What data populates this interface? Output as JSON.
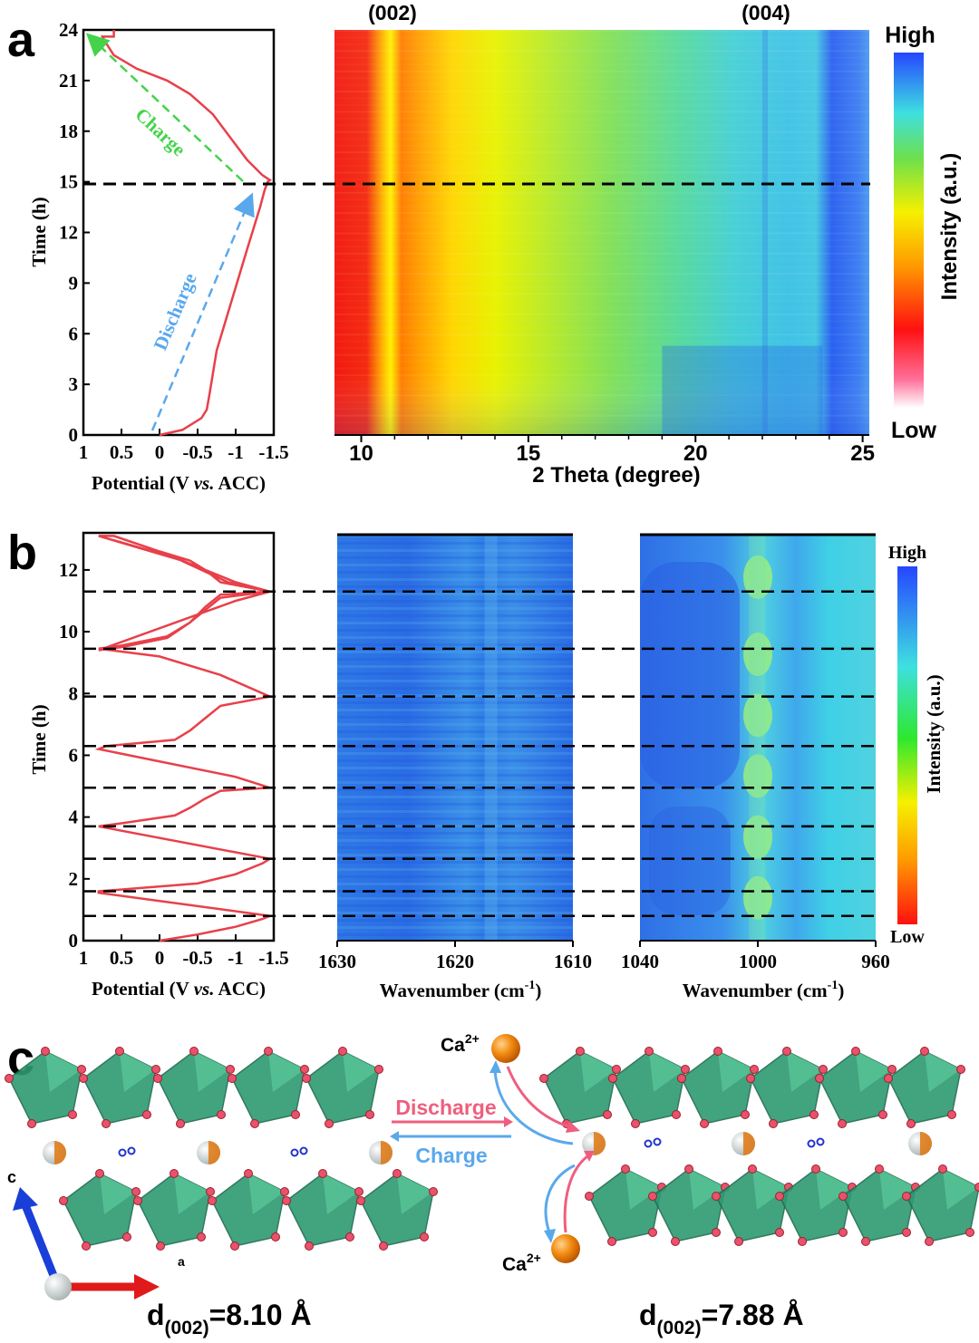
{
  "panel_labels": {
    "a": "a",
    "b": "b",
    "c": "c"
  },
  "panel_a": {
    "peak_labels": [
      "(002)",
      "(004)"
    ],
    "markers": {
      "charge": "Charge",
      "discharge": "Discharge"
    },
    "colorbar": {
      "high": "High",
      "low": "Low",
      "label": "Intensity (a.u.)"
    }
  },
  "panel_b": {
    "colorbar": {
      "high": "High",
      "low": "Low",
      "label": "Intensity (a.u.)"
    }
  },
  "panel_c": {
    "discharge": "Discharge",
    "charge": "Charge",
    "ion": "Ca",
    "ion_charge": "2+",
    "axis_c": "c",
    "axis_a": "a",
    "d_left": {
      "prefix": "d",
      "sub": "(002)",
      "value": "=8.10 Å"
    },
    "d_right": {
      "prefix": "d",
      "sub": "(002)",
      "value": "=7.88 Å"
    }
  },
  "chart_data": [
    {
      "type": "line",
      "id": "a-potential",
      "xlabel": "Potential (V vs. ACC)",
      "ylabel": "Time (h)",
      "xlim": [
        1,
        -1.5
      ],
      "ylim": [
        0,
        24
      ],
      "xticks": [
        1,
        0.5,
        0,
        -0.5,
        -1,
        -1.5
      ],
      "xtick_labels": [
        "1",
        "0.5",
        "0",
        "-0.5",
        "-1",
        "-1.5"
      ],
      "yticks": [
        0,
        3,
        6,
        9,
        12,
        15,
        18,
        21,
        24
      ],
      "series": [
        {
          "x": [
            0.0,
            -0.3,
            -0.55,
            -0.62,
            -0.66,
            -0.75,
            -0.95,
            -1.15,
            -1.32,
            -1.38,
            -1.42,
            -1.45,
            -1.35,
            -1.15,
            -0.95,
            -0.7,
            -0.4,
            -0.1,
            0.3,
            0.6,
            0.7,
            0.75,
            0.6,
            0.6
          ],
          "y": [
            0.0,
            0.3,
            1.0,
            1.5,
            2.5,
            5.0,
            8.0,
            11.0,
            13.5,
            14.5,
            15.0,
            15.1,
            15.4,
            16.3,
            17.5,
            19.0,
            20.2,
            21.0,
            21.7,
            22.5,
            23.2,
            23.6,
            23.6,
            24.0
          ]
        }
      ],
      "dashed_lines_y": [
        15
      ]
    },
    {
      "type": "heatmap",
      "id": "a-xrd",
      "xlabel": "2 Theta (degree)",
      "xlim": [
        9.2,
        25.2
      ],
      "xticks": [
        10,
        15,
        20,
        25
      ],
      "ylim": [
        0,
        24
      ],
      "colorbar": [
        "Low",
        "High"
      ],
      "dashed_lines_y": [
        15
      ]
    },
    {
      "type": "line",
      "id": "b-potential",
      "xlabel": "Potential (V vs. ACC)",
      "ylabel": "Time (h)",
      "xlim": [
        1,
        -1.5
      ],
      "ylim": [
        0,
        13.2
      ],
      "xticks": [
        1,
        0.5,
        0,
        -0.5,
        -1,
        -1.5
      ],
      "xtick_labels": [
        "1",
        "0.5",
        "0",
        "-0.5",
        "-1",
        "-1.5"
      ],
      "yticks": [
        0,
        2,
        4,
        6,
        8,
        10,
        12
      ],
      "series": [
        {
          "x": [
            0.0,
            -0.5,
            -1.0,
            -1.35,
            -1.45,
            0.8,
            0.8,
            -0.5,
            -1.0,
            -1.35,
            -1.45,
            0.8,
            0.5,
            -0.2,
            -0.4,
            -0.6,
            -0.8,
            -1.45,
            -1.0,
            0.8,
            0.7,
            -0.2,
            -0.4,
            -0.6,
            -0.8,
            -1.45,
            -0.8,
            0.0,
            0.8,
            0.5,
            -0.1,
            -0.4,
            -0.6,
            -0.8,
            -1.45,
            -1.0,
            0.8,
            0.5,
            -0.1,
            -0.4,
            -0.6,
            -0.8,
            -1.45,
            -1.0,
            -0.3,
            0.8,
            0.6,
            0.0,
            -0.4,
            -0.6,
            -0.8,
            -1.45,
            -0.9,
            -0.2,
            0.8
          ],
          "y": [
            0.0,
            0.2,
            0.45,
            0.7,
            0.8,
            1.55,
            1.6,
            1.85,
            2.15,
            2.5,
            2.65,
            3.7,
            3.8,
            4.05,
            4.3,
            4.6,
            4.85,
            4.95,
            5.3,
            6.2,
            6.3,
            6.5,
            6.8,
            7.2,
            7.6,
            7.9,
            8.6,
            9.2,
            9.45,
            9.55,
            9.85,
            10.3,
            10.7,
            11.1,
            11.3,
            11.0,
            9.4,
            9.5,
            9.8,
            10.3,
            10.8,
            11.2,
            11.3,
            11.6,
            12.3,
            13.1,
            13.1,
            12.6,
            12.3,
            12.0,
            11.6,
            11.3,
            11.6,
            12.4,
            13.1
          ]
        }
      ],
      "dashed_lines_y": [
        0.8,
        1.6,
        2.65,
        3.7,
        4.95,
        6.3,
        7.9,
        9.45,
        11.3
      ]
    },
    {
      "type": "heatmap",
      "id": "b-ir-1",
      "xlabel": "Wavenumber (cm-1)",
      "xlim": [
        1630,
        1610
      ],
      "xticks": [
        1630,
        1620,
        1610
      ],
      "ylim": [
        0,
        13.2
      ]
    },
    {
      "type": "heatmap",
      "id": "b-ir-2",
      "xlabel": "Wavenumber (cm-1)",
      "xlim": [
        1040,
        960
      ],
      "xticks": [
        1040,
        1000,
        960
      ],
      "ylim": [
        0,
        13.2
      ],
      "colorbar": [
        "Low",
        "High"
      ]
    }
  ]
}
